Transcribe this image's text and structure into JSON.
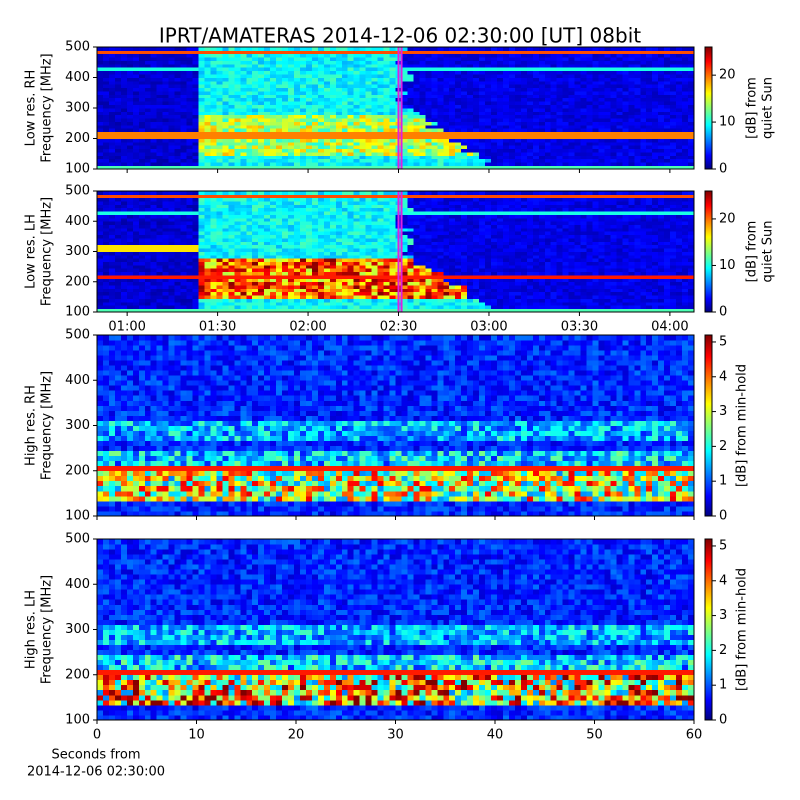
{
  "title": "IPRT/AMATERAS 2014-12-06 02:30:00 [UT]   08bit",
  "chart_data": [
    {
      "type": "spectrogram",
      "y_label": [
        "Low res. RH",
        "Frequency [MHz]"
      ],
      "ylim": [
        100,
        500
      ],
      "yticks": [
        100,
        200,
        300,
        400,
        500
      ],
      "xlim": [
        "00:50",
        "04:08"
      ],
      "sharex": 1,
      "highlight": [
        "02:30",
        "02:31"
      ],
      "highlight_color": "#e020e0",
      "colorbar": {
        "label": [
          "[dB] from",
          "quiet Sun"
        ],
        "lim": [
          0,
          26
        ],
        "ticks": [
          0,
          10,
          20
        ]
      }
    },
    {
      "type": "spectrogram",
      "y_label": [
        "Low res. LH",
        "Frequency [MHz]"
      ],
      "ylim": [
        100,
        500
      ],
      "yticks": [
        100,
        200,
        300,
        400,
        500
      ],
      "xlim": [
        "00:50",
        "04:08"
      ],
      "xticks": [
        "01:00",
        "01:30",
        "02:00",
        "02:30",
        "03:00",
        "03:30",
        "04:00"
      ],
      "highlight": [
        "02:30",
        "02:31"
      ],
      "highlight_color": "#e020e0",
      "colorbar": {
        "label": [
          "[dB] from",
          "quiet Sun"
        ],
        "lim": [
          0,
          26
        ],
        "ticks": [
          0,
          10,
          20
        ]
      }
    },
    {
      "type": "spectrogram",
      "y_label": [
        "High res. RH",
        "Frequency [MHz]"
      ],
      "ylim": [
        100,
        500
      ],
      "yticks": [
        100,
        200,
        300,
        400,
        500
      ],
      "xlim": [
        0,
        60
      ],
      "sharex": 3,
      "colorbar": {
        "label": [
          "[dB] from min-hold"
        ],
        "lim": [
          0,
          5.2
        ],
        "ticks": [
          0,
          1,
          2,
          3,
          4,
          5
        ]
      }
    },
    {
      "type": "spectrogram",
      "y_label": [
        "High res. LH",
        "Frequency [MHz]"
      ],
      "ylim": [
        100,
        500
      ],
      "yticks": [
        100,
        200,
        300,
        400,
        500
      ],
      "xlim": [
        0,
        60
      ],
      "xticks": [
        0,
        10,
        20,
        30,
        40,
        50,
        60
      ],
      "x_label": [
        "Seconds from",
        "2014-12-06 02:30:00"
      ],
      "colorbar": {
        "label": [
          "[dB] from min-hold"
        ],
        "lim": [
          0,
          5.2
        ],
        "ticks": [
          0,
          1,
          2,
          3,
          4,
          5
        ]
      }
    }
  ]
}
